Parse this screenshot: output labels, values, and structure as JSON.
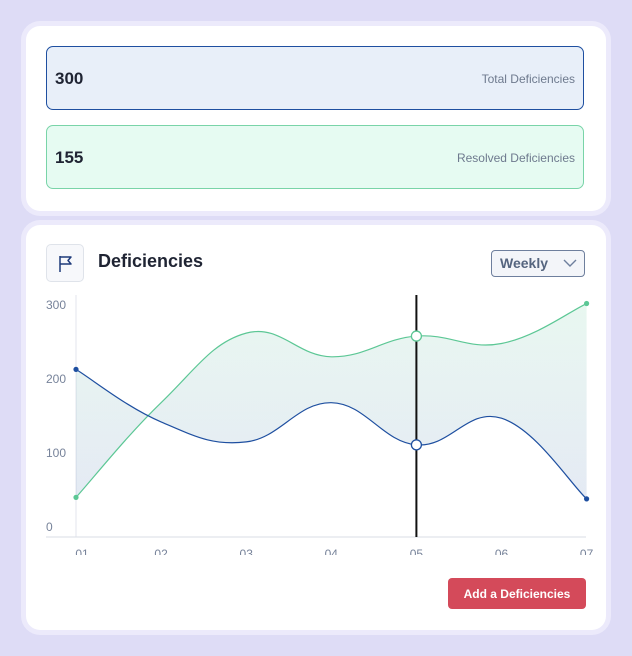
{
  "stats": {
    "total": {
      "value": "300",
      "label": "Total Deficiencies"
    },
    "resolved": {
      "value": "155",
      "label": "Resolved Deficiencies"
    }
  },
  "chart_card": {
    "title": "Deficiencies",
    "icon": "flag-icon",
    "range": "Weekly",
    "add_button": "Add a Deficiencies"
  },
  "colors": {
    "total": "#1e4fa0",
    "resolved": "#5cc795",
    "button": "#d44a5a"
  },
  "chart_data": {
    "type": "line",
    "x": [
      "01",
      "02",
      "03",
      "04",
      "05",
      "06",
      "07"
    ],
    "y_ticks": [
      0,
      100,
      200,
      300
    ],
    "ylim": [
      0,
      300
    ],
    "grid": false,
    "series": [
      {
        "key": "resolved",
        "values": [
          40,
          168,
          262,
          230,
          258,
          248,
          302
        ]
      },
      {
        "key": "total",
        "values": [
          213,
          142,
          115,
          168,
          111,
          147,
          38
        ]
      }
    ],
    "highlight_index": 4
  }
}
